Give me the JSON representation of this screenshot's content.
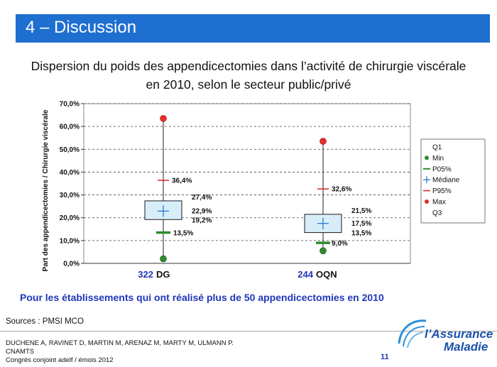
{
  "slide": {
    "title": "4 – Discussion",
    "chart_title_line1": "Dispersion du poids des appendicectomies dans l’activité de chirurgie viscérale",
    "chart_title_line2": "en 2010, selon le secteur public/privé",
    "note": "Pour les établissements qui ont réalisé plus de 50 appendicectomies en 2010",
    "sources": "Sources : PMSI MCO",
    "authors_line1": "DUCHENE A, RAVINET D, MARTIN M, ARENAZ M, MARTY M, ULMANN P.",
    "authors_line2": "CNAMTS",
    "authors_line3": "Congrès conjoint adelf / émois 2012",
    "page_number": "11",
    "logo_text1": "l’Assurance",
    "logo_text2": "Maladie",
    "colors": {
      "title_bar": "#1f6fd1",
      "accent_text": "#1f36b8",
      "box_fill": "#d7eef9",
      "box_stroke": "#1a1a1a",
      "median": "#1f6fd1",
      "min": "#2e8b2e",
      "p05": "#2e8b2e",
      "p95": "#e0302a",
      "max": "#e0302a"
    }
  },
  "chart_data": {
    "type": "box",
    "ylabel": "Part des appendicectomies / Chirurgie viscérale",
    "ylim": [
      0,
      70
    ],
    "yticks": [
      "0,0%",
      "10,0%",
      "20,0%",
      "30,0%",
      "40,0%",
      "50,0%",
      "60,0%",
      "70,0%"
    ],
    "yticks_values": [
      0,
      10,
      20,
      30,
      40,
      50,
      60,
      70
    ],
    "grid": true,
    "legend_position": "right",
    "legend": [
      "Q1",
      "Min",
      "P05%",
      "Médiane",
      "P95%",
      "Max",
      "Q3"
    ],
    "categories": [
      {
        "label": "DG",
        "count": "322",
        "min": 2.0,
        "p05": 13.5,
        "q1": 19.2,
        "median": 22.9,
        "q3": 27.4,
        "p95": 36.4,
        "max": 63.5,
        "labels": {
          "p95": "36,4%",
          "q3": "27,4%",
          "median": "22,9%",
          "q1": "19,2%",
          "p05": "13,5%"
        }
      },
      {
        "label": "OQN",
        "count": "244",
        "min": 5.5,
        "p05": 9.0,
        "q1": 13.5,
        "median": 17.5,
        "q3": 21.5,
        "p95": 32.6,
        "max": 53.5,
        "labels": {
          "p95": "32,6%",
          "q3": "21,5%",
          "median": "17,5%",
          "q1": "13,5%",
          "p05": "9,0%"
        }
      }
    ]
  }
}
